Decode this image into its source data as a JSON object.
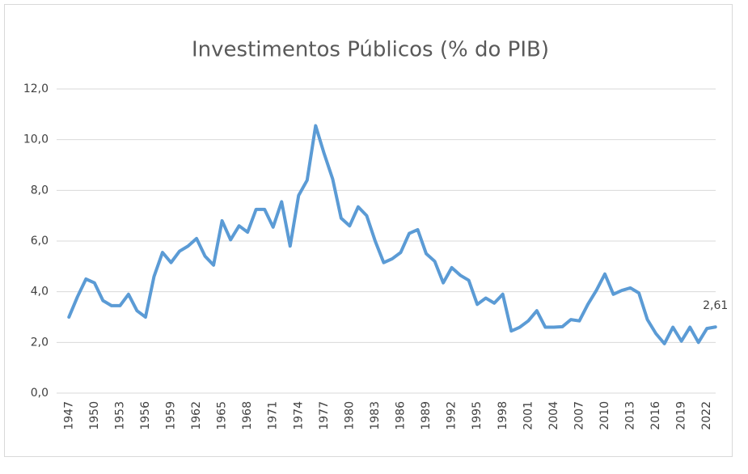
{
  "chart_data": {
    "type": "line",
    "title": "Investimentos Públicos (% do PIB)",
    "categories": [
      "1947",
      null,
      null,
      "1950",
      null,
      null,
      "1953",
      null,
      null,
      "1956",
      null,
      null,
      "1959",
      null,
      null,
      "1962",
      null,
      null,
      "1965",
      null,
      null,
      "1968",
      null,
      null,
      "1971",
      null,
      null,
      "1974",
      null,
      null,
      "1977",
      null,
      null,
      "1980",
      null,
      null,
      "1983",
      null,
      null,
      "1986",
      null,
      null,
      "1989",
      null,
      null,
      "1992",
      null,
      null,
      "1995",
      null,
      null,
      "1998",
      null,
      null,
      "2001",
      null,
      null,
      "2004",
      null,
      null,
      "2007",
      null,
      null,
      "2010",
      null,
      null,
      "2013",
      null,
      null,
      "2016",
      null,
      null,
      "2019",
      null,
      null,
      "2022",
      null
    ],
    "values": [
      3.0,
      3.8,
      4.5,
      4.35,
      3.65,
      3.45,
      3.45,
      3.9,
      3.25,
      3.0,
      4.6,
      5.55,
      5.15,
      5.6,
      5.8,
      6.1,
      5.4,
      5.05,
      6.8,
      6.05,
      6.6,
      6.35,
      7.25,
      7.25,
      6.55,
      7.55,
      5.8,
      7.8,
      8.4,
      10.55,
      9.45,
      8.45,
      6.9,
      6.6,
      7.35,
      7.0,
      6.0,
      5.15,
      5.3,
      5.55,
      6.3,
      6.45,
      5.5,
      5.2,
      4.35,
      4.95,
      4.65,
      4.45,
      3.5,
      3.75,
      3.55,
      3.9,
      2.45,
      2.6,
      2.85,
      3.25,
      2.6,
      2.6,
      2.62,
      2.9,
      2.85,
      3.5,
      4.05,
      4.7,
      3.9,
      4.05,
      4.15,
      3.95,
      2.9,
      2.35,
      1.95,
      2.6,
      2.05,
      2.6,
      2.0,
      2.55,
      2.61
    ],
    "value_labels": [
      null,
      null,
      null,
      null,
      null,
      null,
      null,
      null,
      null,
      null,
      null,
      null,
      null,
      null,
      null,
      null,
      null,
      null,
      null,
      null,
      null,
      null,
      null,
      null,
      null,
      null,
      null,
      null,
      null,
      null,
      null,
      null,
      null,
      null,
      null,
      null,
      null,
      null,
      null,
      null,
      null,
      null,
      null,
      null,
      null,
      null,
      null,
      null,
      null,
      null,
      null,
      null,
      null,
      null,
      null,
      null,
      null,
      null,
      null,
      null,
      null,
      null,
      null,
      null,
      null,
      null,
      null,
      null,
      null,
      null,
      null,
      null,
      null,
      null,
      null,
      null,
      "2,61"
    ],
    "color": "#5b9bd5",
    "ylim": [
      0,
      12
    ],
    "yticks": [
      {
        "value": 0,
        "label": "0,0"
      },
      {
        "value": 2,
        "label": "2,0"
      },
      {
        "value": 4,
        "label": "4,0"
      },
      {
        "value": 6,
        "label": "6,0"
      },
      {
        "value": 8,
        "label": "8,0"
      },
      {
        "value": 10,
        "label": "10,0"
      },
      {
        "value": 12,
        "label": "12,0"
      }
    ],
    "grid": true
  }
}
